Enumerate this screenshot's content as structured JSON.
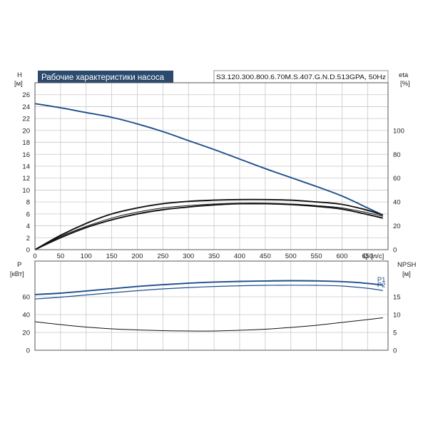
{
  "header": {
    "title": "Рабочие характеристики насоса",
    "model": "S3.120.300.800.6.70M.S.407.G.N.D.513GPA, 50Hz"
  },
  "colors": {
    "title_bg": "#2b4a6e",
    "blue_curve": "#1f4e8c",
    "black_curve": "#111111"
  },
  "chart_data": [
    {
      "type": "line",
      "title": "",
      "x_axis": {
        "label": "Q",
        "unit": "[л/с]",
        "range": [
          0,
          690
        ],
        "ticks": [
          0,
          50,
          100,
          150,
          200,
          250,
          300,
          350,
          400,
          450,
          500,
          550,
          600,
          650
        ]
      },
      "y_left": {
        "label": "H",
        "unit": "[м]",
        "range": [
          0,
          28
        ],
        "ticks": [
          0,
          2,
          4,
          6,
          8,
          10,
          12,
          14,
          16,
          18,
          20,
          22,
          24,
          26
        ]
      },
      "y_right": {
        "label": "eta",
        "unit": "[%]",
        "range": [
          0,
          140
        ],
        "ticks": [
          0,
          20,
          40,
          60,
          80,
          100
        ]
      },
      "grid": true,
      "series": [
        {
          "name": "",
          "axis": "left",
          "color": "blue",
          "x": [
            0,
            50,
            100,
            150,
            200,
            250,
            300,
            350,
            400,
            450,
            500,
            550,
            600,
            650,
            680
          ],
          "y": [
            24.5,
            23.8,
            23.0,
            22.2,
            21.1,
            19.8,
            18.3,
            16.8,
            15.2,
            13.6,
            12.1,
            10.6,
            9.0,
            7.0,
            5.8
          ]
        },
        {
          "name": "",
          "axis": "right",
          "color": "black",
          "x": [
            0,
            50,
            100,
            150,
            200,
            250,
            300,
            350,
            400,
            450,
            500,
            550,
            600,
            650,
            680
          ],
          "y": [
            0,
            12,
            22,
            30,
            35,
            38.5,
            40.5,
            41.5,
            42,
            42,
            41.5,
            40,
            38,
            33,
            29
          ]
        },
        {
          "name": "",
          "axis": "right",
          "color": "black",
          "x": [
            0,
            50,
            100,
            150,
            200,
            250,
            300,
            350,
            400,
            450,
            500,
            550,
            600,
            650,
            680
          ],
          "y": [
            0,
            11,
            19.5,
            26.5,
            31.5,
            35,
            37,
            38.3,
            39,
            39,
            38.3,
            37,
            35,
            31,
            28
          ]
        },
        {
          "name": "",
          "axis": "right",
          "color": "black",
          "x": [
            0,
            50,
            100,
            150,
            200,
            250,
            300,
            350,
            400,
            450,
            500,
            550,
            600,
            650,
            680
          ],
          "y": [
            0,
            10,
            18.5,
            25,
            30,
            33.5,
            35.8,
            37.5,
            38.5,
            38.5,
            37.8,
            36.3,
            34,
            29.5,
            26.5
          ]
        }
      ]
    },
    {
      "type": "line",
      "title": "",
      "x_axis": {
        "range": [
          0,
          690
        ]
      },
      "y_left": {
        "label": "P",
        "unit": "[кВт]",
        "range": [
          0,
          100
        ],
        "ticks": [
          0,
          20,
          40,
          60
        ]
      },
      "y_right": {
        "label": "NPSH",
        "unit": "[м]",
        "range": [
          0,
          25
        ],
        "ticks": [
          0,
          5,
          10,
          15
        ]
      },
      "grid": true,
      "series": [
        {
          "name": "P1",
          "axis": "left",
          "color": "blue",
          "x": [
            0,
            50,
            100,
            150,
            200,
            250,
            300,
            350,
            400,
            450,
            500,
            550,
            600,
            650,
            680
          ],
          "y": [
            62.5,
            64,
            66.5,
            69,
            71.5,
            73.5,
            75.2,
            76.5,
            77.2,
            77.7,
            78,
            77.8,
            77,
            75,
            73
          ]
        },
        {
          "name": "P2",
          "axis": "left",
          "color": "blue",
          "x": [
            0,
            50,
            100,
            150,
            200,
            250,
            300,
            350,
            400,
            450,
            500,
            550,
            600,
            650,
            680
          ],
          "y": [
            57.5,
            59.5,
            62,
            64.5,
            66.8,
            68.8,
            70.3,
            71.5,
            72.3,
            72.8,
            73,
            72.8,
            72,
            69.5,
            67
          ]
        },
        {
          "name": "",
          "axis": "right",
          "color": "black",
          "x": [
            0,
            50,
            100,
            150,
            200,
            250,
            300,
            350,
            400,
            450,
            500,
            550,
            600,
            650,
            680
          ],
          "y": [
            8,
            7.2,
            6.5,
            6.0,
            5.7,
            5.5,
            5.4,
            5.4,
            5.6,
            5.9,
            6.4,
            7.0,
            7.8,
            8.6,
            9.1
          ]
        }
      ]
    }
  ]
}
